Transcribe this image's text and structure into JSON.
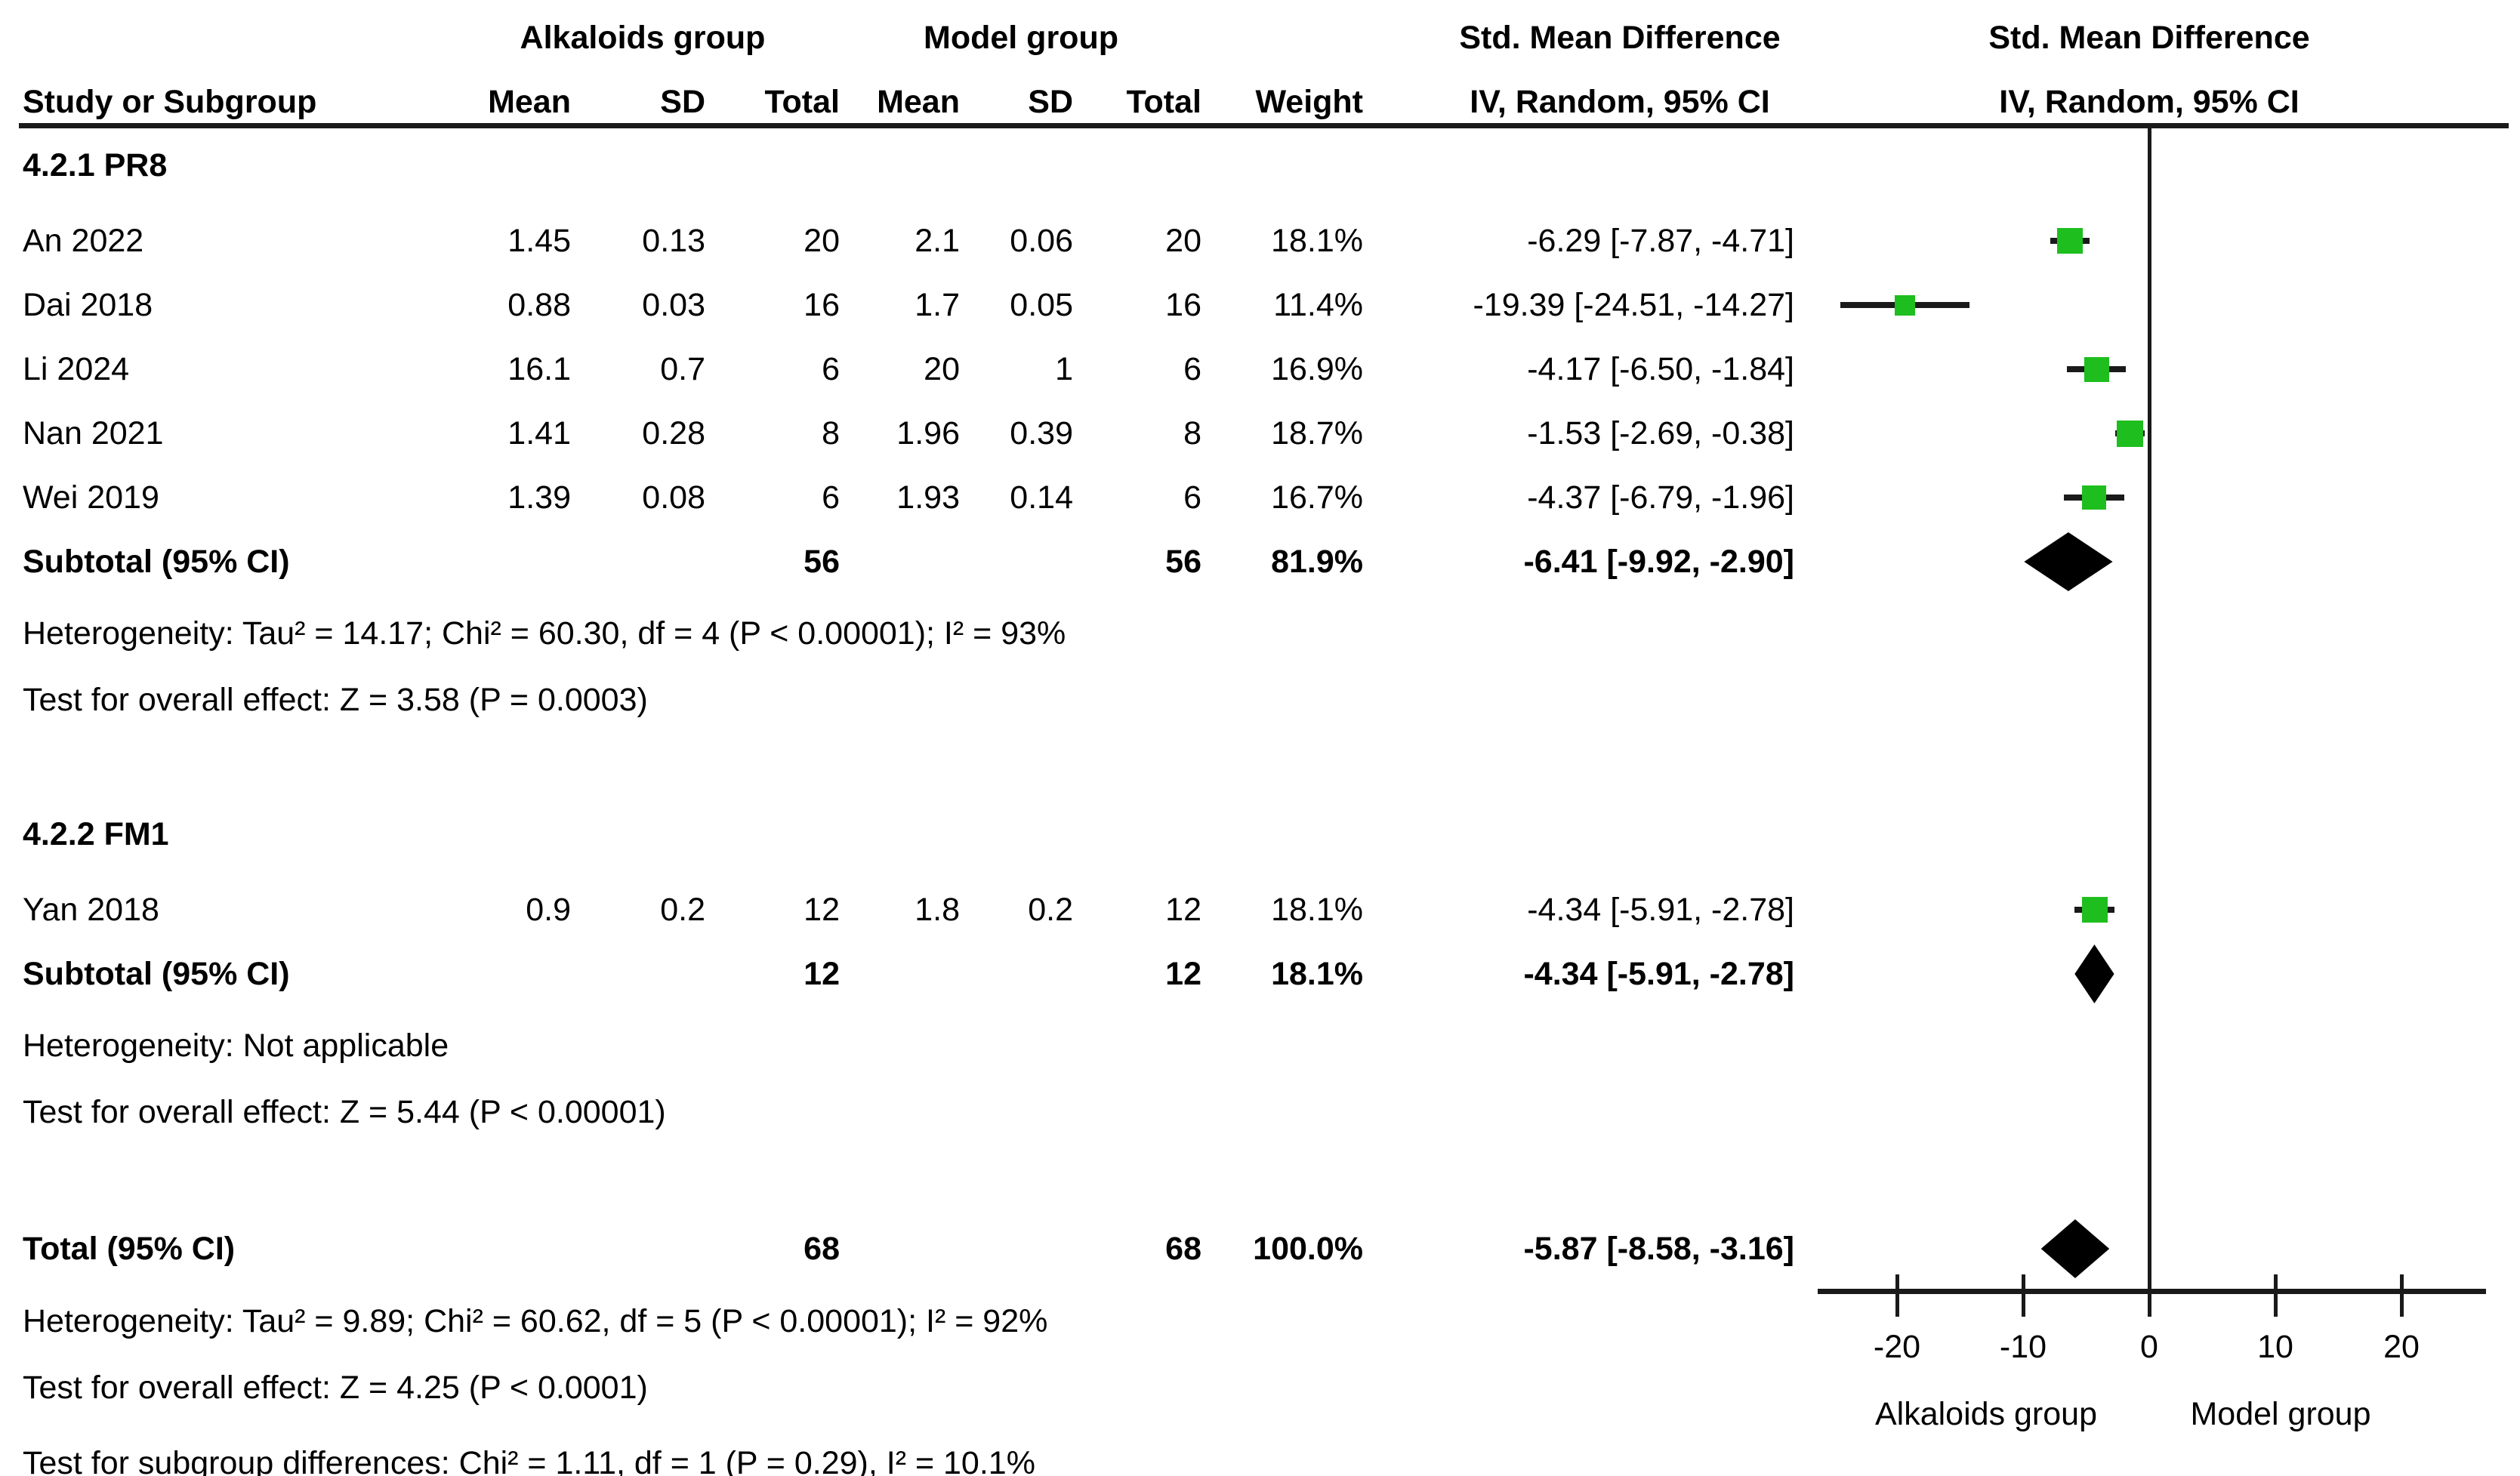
{
  "header": {
    "group1": "Alkaloids group",
    "group2": "Model group",
    "smd_table": "Std. Mean Difference",
    "smd_plot": "Std. Mean Difference",
    "method_table": "IV, Random, 95% CI",
    "method_plot": "IV, Random, 95% CI",
    "col_study": "Study or Subgroup",
    "col_mean": "Mean",
    "col_sd": "SD",
    "col_total": "Total",
    "col_weight": "Weight"
  },
  "chart_data": {
    "type": "forest",
    "effect_measure": "Std. Mean Difference",
    "method": "IV, Random, 95% CI",
    "group1_label": "Alkaloids group",
    "group2_label": "Model group",
    "sections": [
      {
        "label": "4.2.1 PR8",
        "studies": [
          {
            "study": "An 2022",
            "mean1": "1.45",
            "sd1": "0.13",
            "total1": "20",
            "mean2": "2.1",
            "sd2": "0.06",
            "total2": "20",
            "weight": "18.1%",
            "smd": -6.29,
            "ci_low": -7.87,
            "ci_high": -4.71,
            "ci_text": "-6.29 [-7.87, -4.71]"
          },
          {
            "study": "Dai 2018",
            "mean1": "0.88",
            "sd1": "0.03",
            "total1": "16",
            "mean2": "1.7",
            "sd2": "0.05",
            "total2": "16",
            "weight": "11.4%",
            "smd": -19.39,
            "ci_low": -24.51,
            "ci_high": -14.27,
            "ci_text": "-19.39 [-24.51, -14.27]"
          },
          {
            "study": "Li 2024",
            "mean1": "16.1",
            "sd1": "0.7",
            "total1": "6",
            "mean2": "20",
            "sd2": "1",
            "total2": "6",
            "weight": "16.9%",
            "smd": -4.17,
            "ci_low": -6.5,
            "ci_high": -1.84,
            "ci_text": "-4.17 [-6.50, -1.84]"
          },
          {
            "study": "Nan 2021",
            "mean1": "1.41",
            "sd1": "0.28",
            "total1": "8",
            "mean2": "1.96",
            "sd2": "0.39",
            "total2": "8",
            "weight": "18.7%",
            "smd": -1.53,
            "ci_low": -2.69,
            "ci_high": -0.38,
            "ci_text": "-1.53 [-2.69, -0.38]"
          },
          {
            "study": "Wei 2019",
            "mean1": "1.39",
            "sd1": "0.08",
            "total1": "6",
            "mean2": "1.93",
            "sd2": "0.14",
            "total2": "6",
            "weight": "16.7%",
            "smd": -4.37,
            "ci_low": -6.79,
            "ci_high": -1.96,
            "ci_text": "-4.37 [-6.79, -1.96]"
          }
        ],
        "subtotal": {
          "label": "Subtotal (95% CI)",
          "total1": "56",
          "total2": "56",
          "weight": "81.9%",
          "smd": -6.41,
          "ci_low": -9.92,
          "ci_high": -2.9,
          "ci_text": "-6.41 [-9.92, -2.90]"
        },
        "heterogeneity": "Heterogeneity: Tau² = 14.17; Chi² = 60.30, df = 4 (P < 0.00001); I² = 93%",
        "overall_effect": "Test for overall effect: Z = 3.58 (P = 0.0003)"
      },
      {
        "label": "4.2.2 FM1",
        "studies": [
          {
            "study": "Yan 2018",
            "mean1": "0.9",
            "sd1": "0.2",
            "total1": "12",
            "mean2": "1.8",
            "sd2": "0.2",
            "total2": "12",
            "weight": "18.1%",
            "smd": -4.34,
            "ci_low": -5.91,
            "ci_high": -2.78,
            "ci_text": "-4.34 [-5.91, -2.78]"
          }
        ],
        "subtotal": {
          "label": "Subtotal (95% CI)",
          "total1": "12",
          "total2": "12",
          "weight": "18.1%",
          "smd": -4.34,
          "ci_low": -5.91,
          "ci_high": -2.78,
          "ci_text": "-4.34 [-5.91, -2.78]"
        },
        "heterogeneity": "Heterogeneity: Not applicable",
        "overall_effect": "Test for overall effect: Z = 5.44 (P < 0.00001)"
      }
    ],
    "total": {
      "label": "Total (95% CI)",
      "total1": "68",
      "total2": "68",
      "weight": "100.0%",
      "smd": -5.87,
      "ci_low": -8.58,
      "ci_high": -3.16,
      "ci_text": "-5.87 [-8.58, -3.16]"
    },
    "total_heterogeneity": "Heterogeneity: Tau² = 9.89; Chi² = 60.62, df = 5 (P < 0.00001); I² = 92%",
    "total_overall_effect": "Test for overall effect: Z = 4.25 (P < 0.0001)",
    "subgroup_test": "Test for subgroup differences: Chi² = 1.11, df = 1 (P = 0.29), I² = 10.1%",
    "axis": {
      "ticks": [
        "-20",
        "-10",
        "0",
        "10",
        "20"
      ],
      "tick_values": [
        -20,
        -10,
        0,
        10,
        20
      ],
      "xlim": [
        -26.3,
        26.7
      ],
      "left_label": "Alkaloids group",
      "right_label": "Model group"
    },
    "colors": {
      "marker_green": "#1EBE1E",
      "diamond_black": "#000000",
      "line_black": "#1a1a1a"
    }
  }
}
